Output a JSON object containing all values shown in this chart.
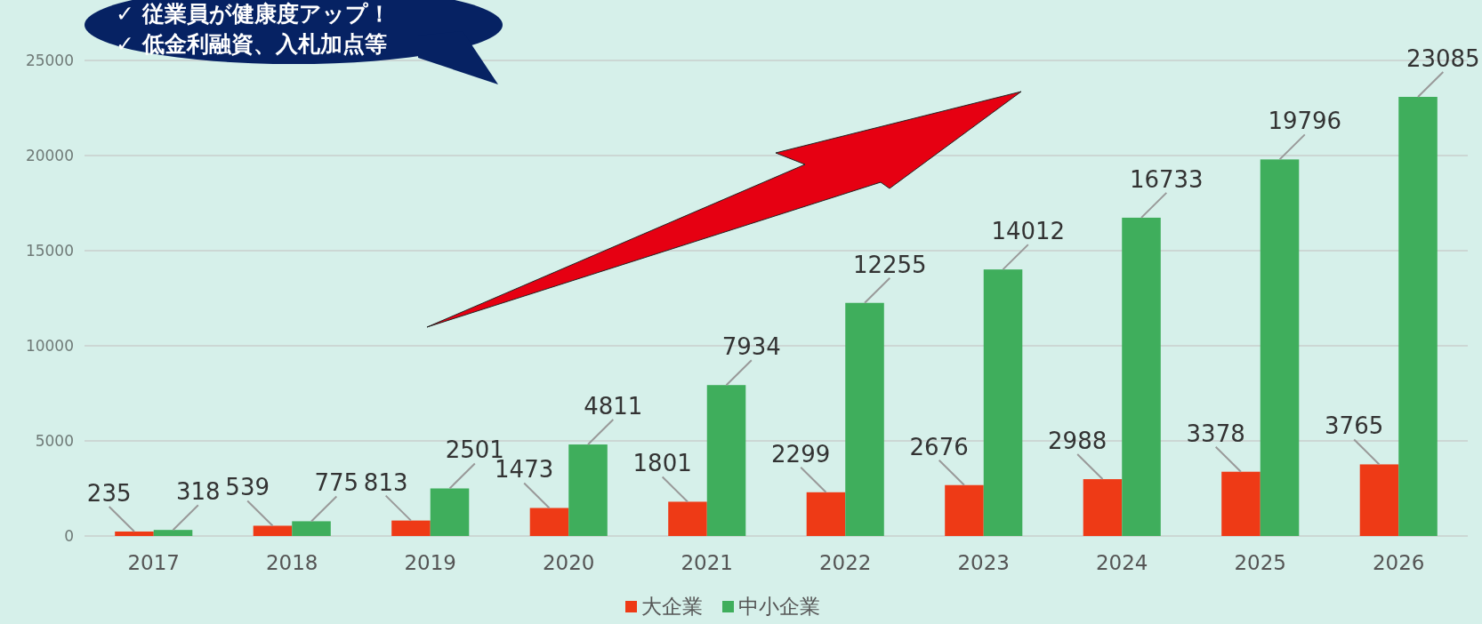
{
  "chart_data": {
    "type": "bar",
    "categories": [
      "2017",
      "2018",
      "2019",
      "2020",
      "2021",
      "2022",
      "2023",
      "2024",
      "2025",
      "2026"
    ],
    "series": [
      {
        "name": "大企業",
        "color": "#ee3a16",
        "values": [
          235,
          539,
          813,
          1473,
          1801,
          2299,
          2676,
          2988,
          3378,
          3765
        ]
      },
      {
        "name": "中小企業",
        "color": "#3fae5c",
        "values": [
          318,
          775,
          2501,
          4811,
          7934,
          12255,
          14012,
          16733,
          19796,
          23085
        ]
      }
    ],
    "ylim": [
      0,
      25000
    ],
    "yticks": [
      0,
      5000,
      10000,
      15000,
      20000,
      25000
    ],
    "grid": "y",
    "legend": "bottom",
    "data_labels": true,
    "annotations": [
      "✓ 従業員が健康度アップ！",
      "✓ 低金利融資、入札加点等"
    ]
  }
}
